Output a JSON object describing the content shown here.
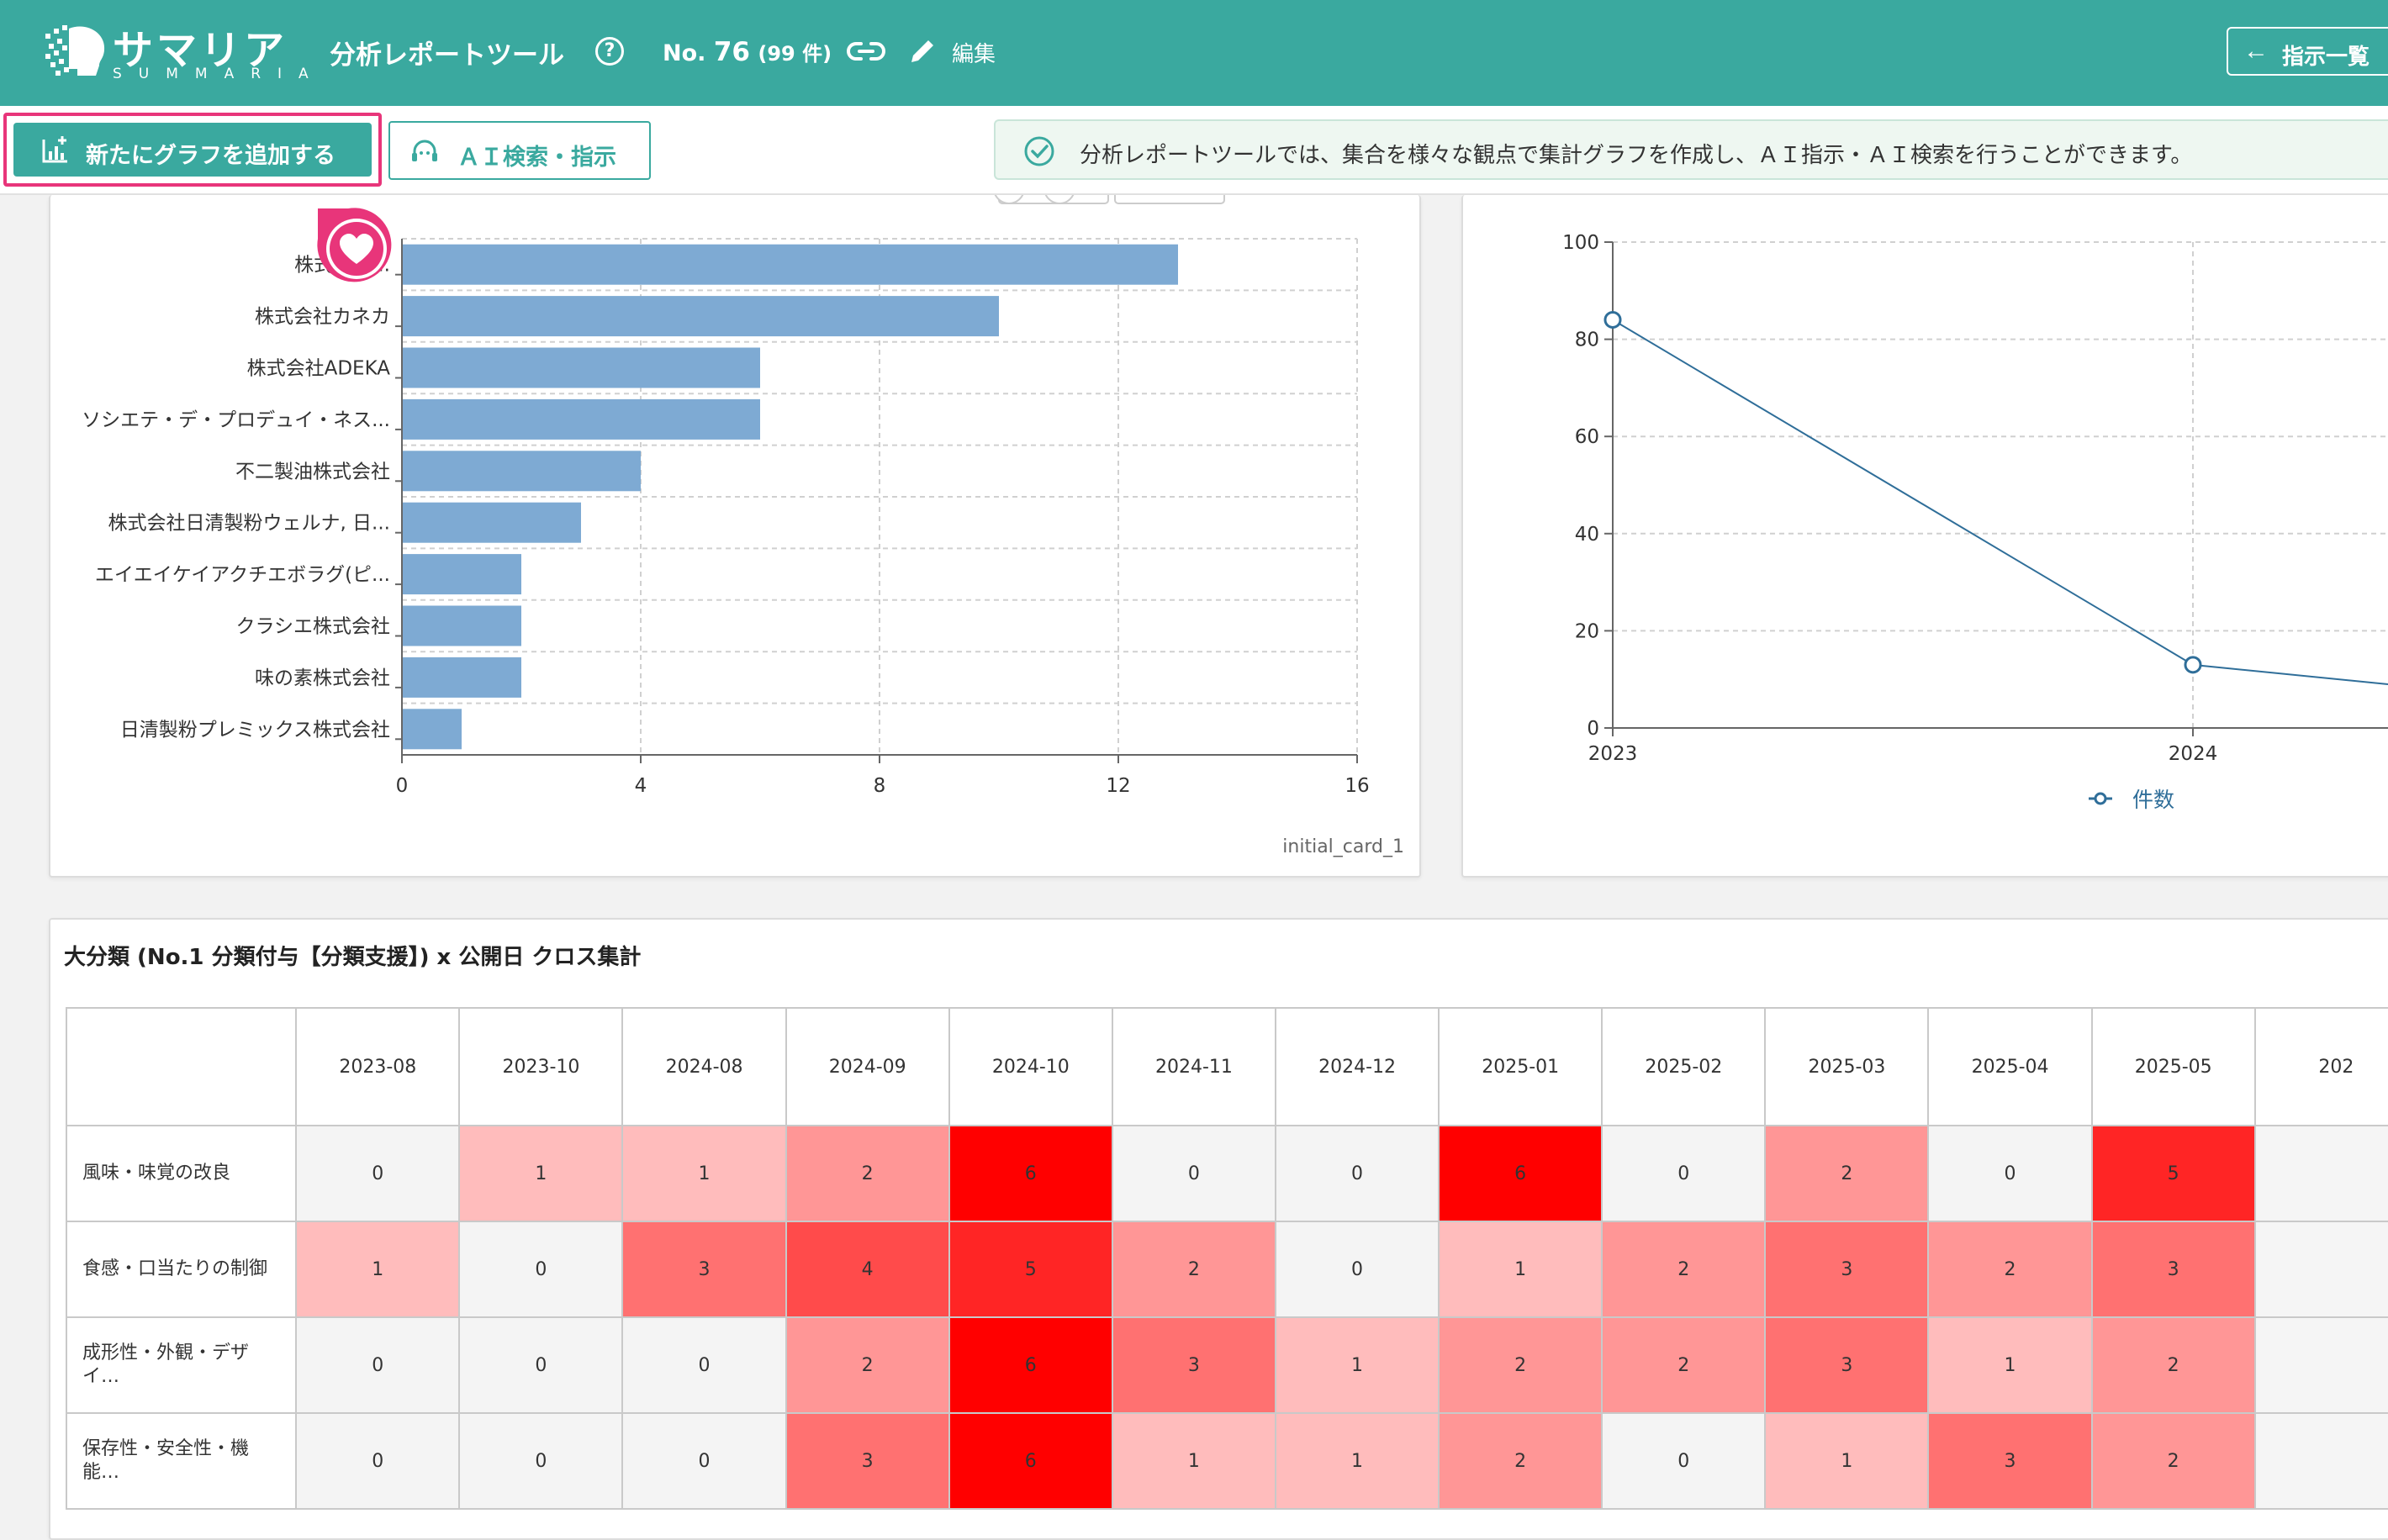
{
  "header": {
    "logo_text": "サマリア",
    "logo_sub": "SUMMARIA",
    "app_title": "分析レポートツール",
    "report_no_prefix": "No.",
    "report_no_number": "76",
    "report_count": "(99 件)",
    "edit_label": "編集",
    "back_label": "指示一覧",
    "colors": {
      "bar": "#3aa99f"
    }
  },
  "toolbar": {
    "add_graph_label": "新たにグラフを追加する",
    "ai_label": "ＡＩ検索・指示",
    "info_text": "分析レポートツールでは、集合を様々な観点で集計グラフを作成し、ＡＩ指示・ＡＩ検索を行うことができます。"
  },
  "card1": {
    "id_label": "initial_card_1"
  },
  "card3": {
    "title": "大分類 (No.1 分類付与【分類支援】) x 公開日 クロス集計"
  },
  "chart_data": [
    {
      "type": "bar",
      "orientation": "horizontal",
      "categories": [
        "株式会社...",
        "株式会社カネカ",
        "株式会社ADEKA",
        "ソシエテ・デ・プロデュイ・ネス...",
        "不二製油株式会社",
        "株式会社日清製粉ウェルナ, 日...",
        "エイエイケイアクチエボラグ(ピ...",
        "クラシエ株式会社",
        "味の素株式会社",
        "日清製粉プレミックス株式会社"
      ],
      "values": [
        13,
        10,
        6,
        6,
        4,
        3,
        2,
        2,
        2,
        1
      ],
      "xlim": [
        0,
        16
      ],
      "xticks": [
        "0",
        "4",
        "8",
        "12",
        "16"
      ],
      "grid": true,
      "color": "#7eaad3"
    },
    {
      "type": "line",
      "x": [
        "2023",
        "2024"
      ],
      "values": [
        84,
        13
      ],
      "trailing_value": 9,
      "ylim": [
        0,
        100
      ],
      "yticks": [
        "0",
        "20",
        "40",
        "60",
        "80",
        "100"
      ],
      "series_name": "件数",
      "legend": "bottom",
      "grid": true,
      "color": "#2f6e99"
    },
    {
      "type": "heatmap",
      "columns": [
        "2023-08",
        "2023-10",
        "2024-08",
        "2024-09",
        "2024-10",
        "2024-11",
        "2024-12",
        "2025-01",
        "2025-02",
        "2025-03",
        "2025-04",
        "2025-05",
        "202"
      ],
      "rows": [
        {
          "label": "風味・味覚の改良",
          "values": [
            0,
            1,
            1,
            2,
            6,
            0,
            0,
            6,
            0,
            2,
            0,
            5,
            null
          ]
        },
        {
          "label": "食感・口当たりの制御",
          "values": [
            1,
            0,
            3,
            4,
            5,
            2,
            0,
            1,
            2,
            3,
            2,
            3,
            null
          ]
        },
        {
          "label": "成形性・外観・デザイ…",
          "values": [
            0,
            0,
            0,
            2,
            6,
            3,
            1,
            2,
            2,
            3,
            1,
            2,
            null
          ]
        },
        {
          "label": "保存性・安全性・機能…",
          "values": [
            0,
            0,
            0,
            3,
            6,
            1,
            1,
            2,
            0,
            1,
            3,
            2,
            null
          ]
        }
      ],
      "max_value": 6
    }
  ]
}
